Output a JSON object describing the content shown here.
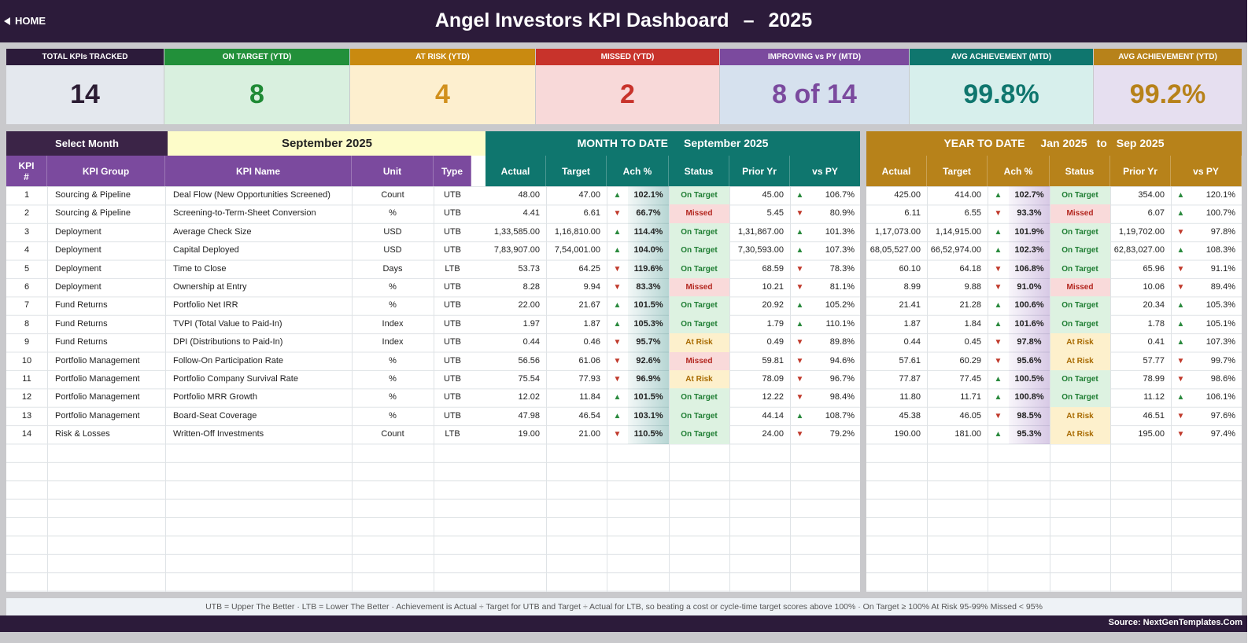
{
  "header": {
    "home_label": "HOME",
    "title": "Angel Investors KPI Dashboard",
    "separator": "–",
    "year": "2025"
  },
  "cards": [
    {
      "label": "TOTAL KPIs TRACKED",
      "value": "14",
      "label_bg": "#2c1b3a",
      "value_bg": "#e4e8ee",
      "value_color": "#2b1c33"
    },
    {
      "label": "ON TARGET (YTD)",
      "value": "8",
      "label_bg": "#22903a",
      "value_bg": "#d9f0df",
      "value_color": "#1f8a35"
    },
    {
      "label": "AT RISK (YTD)",
      "value": "4",
      "label_bg": "#c98a10",
      "value_bg": "#fdefcf",
      "value_color": "#d1901d"
    },
    {
      "label": "MISSED (YTD)",
      "value": "2",
      "label_bg": "#c8332b",
      "value_bg": "#f8d9d9",
      "value_color": "#c8332b"
    },
    {
      "label": "IMPROVING vs PY (MTD)",
      "value": "8 of 14",
      "label_bg": "#7b4a9e",
      "value_bg": "#d6e1ee",
      "value_color": "#7b4a9e"
    },
    {
      "label": "AVG ACHIEVEMENT (MTD)",
      "value": "99.8%",
      "label_bg": "#0f766e",
      "value_bg": "#d7efec",
      "value_color": "#0f766e"
    },
    {
      "label": "AVG ACHIEVEMENT (YTD)",
      "value": "99.2%",
      "label_bg": "#b7821a",
      "value_bg": "#e6dff0",
      "value_color": "#b7821a"
    }
  ],
  "left": {
    "select_label": "Select Month",
    "selected_month": "September 2025",
    "headers": [
      "KPI #",
      "KPI Group",
      "KPI Name",
      "Unit",
      "Type"
    ]
  },
  "mtd": {
    "title": "MONTH TO DATE",
    "period": "September 2025",
    "headers": [
      "Actual",
      "Target",
      "Ach %",
      "Status",
      "Prior Yr",
      "vs PY"
    ]
  },
  "ytd": {
    "title": "YEAR TO DATE",
    "period_start": "Jan 2025",
    "period_to": "to",
    "period_end": "Sep 2025",
    "headers": [
      "Actual",
      "Target",
      "Ach %",
      "Status",
      "Prior Yr",
      "vs PY"
    ]
  },
  "kpis": [
    {
      "num": "1",
      "group": "Sourcing & Pipeline",
      "name": "Deal Flow (New Opportunities Screened)",
      "unit": "Count",
      "type": "UTB",
      "mtd": {
        "actual": "48.00",
        "target": "47.00",
        "ach_dir": "up",
        "ach": "102.1%",
        "status": "On Target",
        "prior": "45.00",
        "py_dir": "up",
        "vs_py": "106.7%"
      },
      "ytd": {
        "actual": "425.00",
        "target": "414.00",
        "ach_dir": "up",
        "ach": "102.7%",
        "status": "On Target",
        "prior": "354.00",
        "py_dir": "up",
        "vs_py": "120.1%"
      }
    },
    {
      "num": "2",
      "group": "Sourcing & Pipeline",
      "name": "Screening-to-Term-Sheet Conversion",
      "unit": "%",
      "type": "UTB",
      "mtd": {
        "actual": "4.41",
        "target": "6.61",
        "ach_dir": "down",
        "ach": "66.7%",
        "status": "Missed",
        "prior": "5.45",
        "py_dir": "down",
        "vs_py": "80.9%"
      },
      "ytd": {
        "actual": "6.11",
        "target": "6.55",
        "ach_dir": "down",
        "ach": "93.3%",
        "status": "Missed",
        "prior": "6.07",
        "py_dir": "up",
        "vs_py": "100.7%"
      }
    },
    {
      "num": "3",
      "group": "Deployment",
      "name": "Average Check Size",
      "unit": "USD",
      "type": "UTB",
      "mtd": {
        "actual": "1,33,585.00",
        "target": "1,16,810.00",
        "ach_dir": "up",
        "ach": "114.4%",
        "status": "On Target",
        "prior": "1,31,867.00",
        "py_dir": "up",
        "vs_py": "101.3%"
      },
      "ytd": {
        "actual": "1,17,073.00",
        "target": "1,14,915.00",
        "ach_dir": "up",
        "ach": "101.9%",
        "status": "On Target",
        "prior": "1,19,702.00",
        "py_dir": "down",
        "vs_py": "97.8%"
      }
    },
    {
      "num": "4",
      "group": "Deployment",
      "name": "Capital Deployed",
      "unit": "USD",
      "type": "UTB",
      "mtd": {
        "actual": "7,83,907.00",
        "target": "7,54,001.00",
        "ach_dir": "up",
        "ach": "104.0%",
        "status": "On Target",
        "prior": "7,30,593.00",
        "py_dir": "up",
        "vs_py": "107.3%"
      },
      "ytd": {
        "actual": "68,05,527.00",
        "target": "66,52,974.00",
        "ach_dir": "up",
        "ach": "102.3%",
        "status": "On Target",
        "prior": "62,83,027.00",
        "py_dir": "up",
        "vs_py": "108.3%"
      }
    },
    {
      "num": "5",
      "group": "Deployment",
      "name": "Time to Close",
      "unit": "Days",
      "type": "LTB",
      "mtd": {
        "actual": "53.73",
        "target": "64.25",
        "ach_dir": "down",
        "ach": "119.6%",
        "status": "On Target",
        "prior": "68.59",
        "py_dir": "down",
        "vs_py": "78.3%"
      },
      "ytd": {
        "actual": "60.10",
        "target": "64.18",
        "ach_dir": "down",
        "ach": "106.8%",
        "status": "On Target",
        "prior": "65.96",
        "py_dir": "down",
        "vs_py": "91.1%"
      }
    },
    {
      "num": "6",
      "group": "Deployment",
      "name": "Ownership at Entry",
      "unit": "%",
      "type": "UTB",
      "mtd": {
        "actual": "8.28",
        "target": "9.94",
        "ach_dir": "down",
        "ach": "83.3%",
        "status": "Missed",
        "prior": "10.21",
        "py_dir": "down",
        "vs_py": "81.1%"
      },
      "ytd": {
        "actual": "8.99",
        "target": "9.88",
        "ach_dir": "down",
        "ach": "91.0%",
        "status": "Missed",
        "prior": "10.06",
        "py_dir": "down",
        "vs_py": "89.4%"
      }
    },
    {
      "num": "7",
      "group": "Fund Returns",
      "name": "Portfolio Net IRR",
      "unit": "%",
      "type": "UTB",
      "mtd": {
        "actual": "22.00",
        "target": "21.67",
        "ach_dir": "up",
        "ach": "101.5%",
        "status": "On Target",
        "prior": "20.92",
        "py_dir": "up",
        "vs_py": "105.2%"
      },
      "ytd": {
        "actual": "21.41",
        "target": "21.28",
        "ach_dir": "up",
        "ach": "100.6%",
        "status": "On Target",
        "prior": "20.34",
        "py_dir": "up",
        "vs_py": "105.3%"
      }
    },
    {
      "num": "8",
      "group": "Fund Returns",
      "name": "TVPI (Total Value to Paid-In)",
      "unit": "Index",
      "type": "UTB",
      "mtd": {
        "actual": "1.97",
        "target": "1.87",
        "ach_dir": "up",
        "ach": "105.3%",
        "status": "On Target",
        "prior": "1.79",
        "py_dir": "up",
        "vs_py": "110.1%"
      },
      "ytd": {
        "actual": "1.87",
        "target": "1.84",
        "ach_dir": "up",
        "ach": "101.6%",
        "status": "On Target",
        "prior": "1.78",
        "py_dir": "up",
        "vs_py": "105.1%"
      }
    },
    {
      "num": "9",
      "group": "Fund Returns",
      "name": "DPI (Distributions to Paid-In)",
      "unit": "Index",
      "type": "UTB",
      "mtd": {
        "actual": "0.44",
        "target": "0.46",
        "ach_dir": "down",
        "ach": "95.7%",
        "status": "At Risk",
        "prior": "0.49",
        "py_dir": "down",
        "vs_py": "89.8%"
      },
      "ytd": {
        "actual": "0.44",
        "target": "0.45",
        "ach_dir": "down",
        "ach": "97.8%",
        "status": "At Risk",
        "prior": "0.41",
        "py_dir": "up",
        "vs_py": "107.3%"
      }
    },
    {
      "num": "10",
      "group": "Portfolio Management",
      "name": "Follow-On Participation Rate",
      "unit": "%",
      "type": "UTB",
      "mtd": {
        "actual": "56.56",
        "target": "61.06",
        "ach_dir": "down",
        "ach": "92.6%",
        "status": "Missed",
        "prior": "59.81",
        "py_dir": "down",
        "vs_py": "94.6%"
      },
      "ytd": {
        "actual": "57.61",
        "target": "60.29",
        "ach_dir": "down",
        "ach": "95.6%",
        "status": "At Risk",
        "prior": "57.77",
        "py_dir": "down",
        "vs_py": "99.7%"
      }
    },
    {
      "num": "11",
      "group": "Portfolio Management",
      "name": "Portfolio Company Survival Rate",
      "unit": "%",
      "type": "UTB",
      "mtd": {
        "actual": "75.54",
        "target": "77.93",
        "ach_dir": "down",
        "ach": "96.9%",
        "status": "At Risk",
        "prior": "78.09",
        "py_dir": "down",
        "vs_py": "96.7%"
      },
      "ytd": {
        "actual": "77.87",
        "target": "77.45",
        "ach_dir": "up",
        "ach": "100.5%",
        "status": "On Target",
        "prior": "78.99",
        "py_dir": "down",
        "vs_py": "98.6%"
      }
    },
    {
      "num": "12",
      "group": "Portfolio Management",
      "name": "Portfolio MRR Growth",
      "unit": "%",
      "type": "UTB",
      "mtd": {
        "actual": "12.02",
        "target": "11.84",
        "ach_dir": "up",
        "ach": "101.5%",
        "status": "On Target",
        "prior": "12.22",
        "py_dir": "down",
        "vs_py": "98.4%"
      },
      "ytd": {
        "actual": "11.80",
        "target": "11.71",
        "ach_dir": "up",
        "ach": "100.8%",
        "status": "On Target",
        "prior": "11.12",
        "py_dir": "up",
        "vs_py": "106.1%"
      }
    },
    {
      "num": "13",
      "group": "Portfolio Management",
      "name": "Board-Seat Coverage",
      "unit": "%",
      "type": "UTB",
      "mtd": {
        "actual": "47.98",
        "target": "46.54",
        "ach_dir": "up",
        "ach": "103.1%",
        "status": "On Target",
        "prior": "44.14",
        "py_dir": "up",
        "vs_py": "108.7%"
      },
      "ytd": {
        "actual": "45.38",
        "target": "46.05",
        "ach_dir": "down",
        "ach": "98.5%",
        "status": "At Risk",
        "prior": "46.51",
        "py_dir": "down",
        "vs_py": "97.6%"
      }
    },
    {
      "num": "14",
      "group": "Risk & Losses",
      "name": "Written-Off Investments",
      "unit": "Count",
      "type": "LTB",
      "mtd": {
        "actual": "19.00",
        "target": "21.00",
        "ach_dir": "down",
        "ach": "110.5%",
        "status": "On Target",
        "prior": "24.00",
        "py_dir": "down",
        "vs_py": "79.2%"
      },
      "ytd": {
        "actual": "190.00",
        "target": "181.00",
        "ach_dir": "up",
        "ach": "95.3%",
        "status": "At Risk",
        "prior": "195.00",
        "py_dir": "down",
        "vs_py": "97.4%"
      }
    }
  ],
  "footnote": "UTB = Upper The Better   ·   LTB = Lower The Better   ·   Achievement is Actual ÷ Target for UTB and Target ÷ Actual for LTB, so beating a cost or cycle-time target scores above 100%   ·   On Target ≥ 100%    At Risk 95-99%    Missed < 95%",
  "source": "Source: NextGenTemplates.Com",
  "colors": {
    "left_header": "#7b4a9e",
    "mtd_header": "#0f766e",
    "ytd_header": "#b7821a",
    "brand_dark": "#2c1b3a"
  }
}
